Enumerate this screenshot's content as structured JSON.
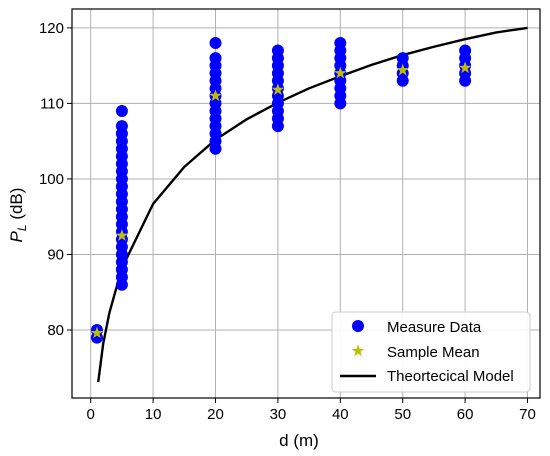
{
  "chart_data": {
    "type": "scatter",
    "title": "",
    "xlabel": "d (m)",
    "ylabel": {
      "main": "P",
      "sub": "L",
      "unit": " (dB)"
    },
    "xlim": [
      -3,
      72
    ],
    "ylim": [
      71,
      122.5
    ],
    "x_ticks": [
      0,
      10,
      20,
      30,
      40,
      50,
      60,
      70
    ],
    "y_ticks": [
      80,
      90,
      100,
      110,
      120
    ],
    "grid": true,
    "legend_position": "bottom-right",
    "series": [
      {
        "name": "Measure Data",
        "marker": "circle",
        "color": "#0000ff",
        "points": [
          [
            1,
            79
          ],
          [
            1,
            80
          ],
          [
            5,
            86
          ],
          [
            5,
            87
          ],
          [
            5,
            88
          ],
          [
            5,
            89
          ],
          [
            5,
            90
          ],
          [
            5,
            91
          ],
          [
            5,
            92
          ],
          [
            5,
            93
          ],
          [
            5,
            94
          ],
          [
            5,
            95
          ],
          [
            5,
            96
          ],
          [
            5,
            97
          ],
          [
            5,
            98
          ],
          [
            5,
            99
          ],
          [
            5,
            100
          ],
          [
            5,
            101
          ],
          [
            5,
            102
          ],
          [
            5,
            103
          ],
          [
            5,
            104
          ],
          [
            5,
            105
          ],
          [
            5,
            106
          ],
          [
            5,
            107
          ],
          [
            5,
            109
          ],
          [
            20,
            104
          ],
          [
            20,
            105
          ],
          [
            20,
            106
          ],
          [
            20,
            107
          ],
          [
            20,
            108
          ],
          [
            20,
            109
          ],
          [
            20,
            110
          ],
          [
            20,
            111
          ],
          [
            20,
            112
          ],
          [
            20,
            113
          ],
          [
            20,
            114
          ],
          [
            20,
            115
          ],
          [
            20,
            116
          ],
          [
            20,
            118
          ],
          [
            30,
            107
          ],
          [
            30,
            108
          ],
          [
            30,
            109
          ],
          [
            30,
            110
          ],
          [
            30,
            111
          ],
          [
            30,
            112
          ],
          [
            30,
            113
          ],
          [
            30,
            114
          ],
          [
            30,
            115
          ],
          [
            30,
            116
          ],
          [
            30,
            117
          ],
          [
            40,
            110
          ],
          [
            40,
            111
          ],
          [
            40,
            112
          ],
          [
            40,
            113
          ],
          [
            40,
            114
          ],
          [
            40,
            115
          ],
          [
            40,
            116
          ],
          [
            40,
            117
          ],
          [
            40,
            118
          ],
          [
            50,
            113
          ],
          [
            50,
            114
          ],
          [
            50,
            115
          ],
          [
            50,
            116
          ],
          [
            60,
            113
          ],
          [
            60,
            114
          ],
          [
            60,
            115
          ],
          [
            60,
            116
          ],
          [
            60,
            117
          ]
        ]
      },
      {
        "name": "Sample Mean",
        "marker": "star",
        "color": "#bfbf00",
        "points": [
          [
            1,
            79.6
          ],
          [
            5,
            92.5
          ],
          [
            20,
            111.0
          ],
          [
            30,
            111.8
          ],
          [
            40,
            114.0
          ],
          [
            50,
            114.4
          ],
          [
            60,
            114.7
          ]
        ]
      },
      {
        "name": "Theortecical Model",
        "marker": "line",
        "color": "#000000",
        "points": [
          [
            1.2,
            73.1
          ],
          [
            2,
            78.2
          ],
          [
            3,
            82.3
          ],
          [
            5,
            88.2
          ],
          [
            10,
            96.7
          ],
          [
            15,
            101.6
          ],
          [
            20,
            105.2
          ],
          [
            25,
            107.9
          ],
          [
            30,
            110.1
          ],
          [
            35,
            112.0
          ],
          [
            40,
            113.6
          ],
          [
            45,
            115.1
          ],
          [
            50,
            116.4
          ],
          [
            55,
            117.5
          ],
          [
            60,
            118.5
          ],
          [
            65,
            119.4
          ],
          [
            70,
            120.0
          ]
        ]
      }
    ]
  }
}
